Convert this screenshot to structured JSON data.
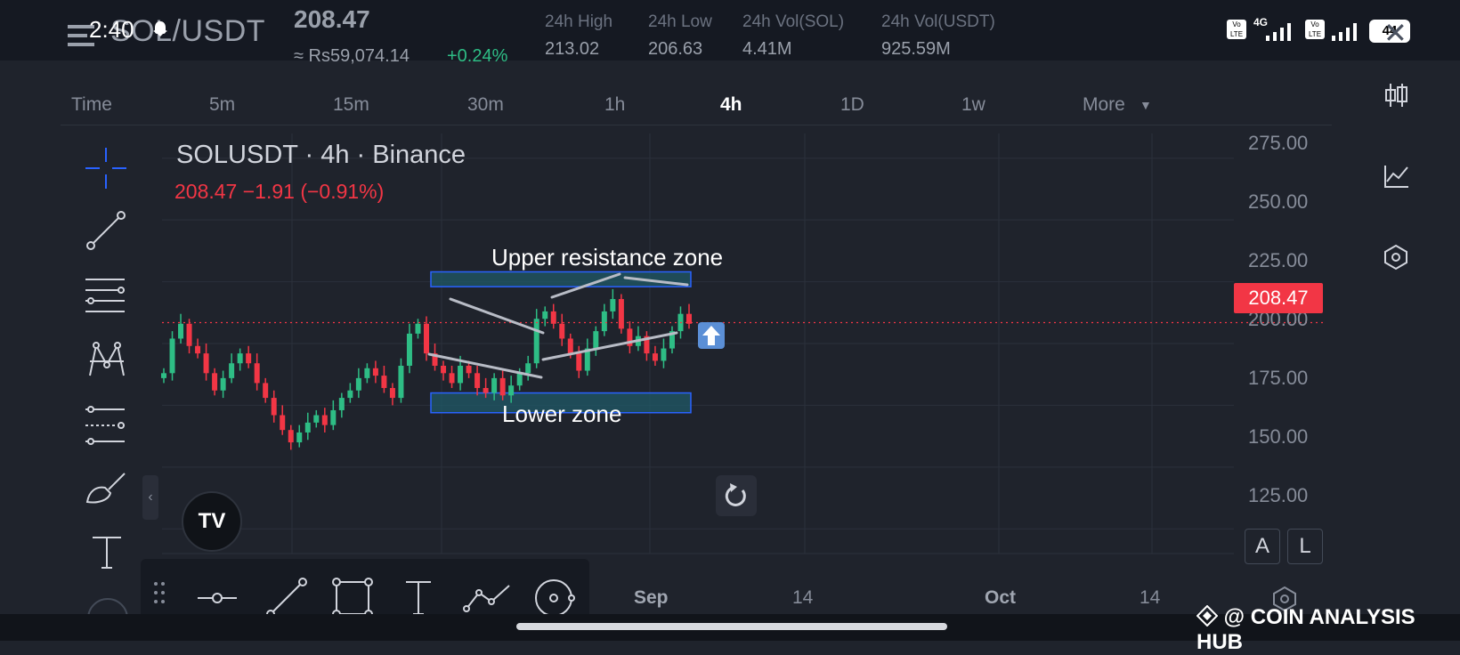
{
  "status_bar": {
    "time": "2:40",
    "network": "4G",
    "volte_1": "Vo LTE",
    "volte_2": "Vo LTE",
    "battery": "44"
  },
  "header": {
    "pair": "SOL/USDT",
    "last_price": "208.47",
    "price_inr": "≈ Rs59,074.14",
    "change_pct": "+0.24%",
    "stats": [
      {
        "label": "24h High",
        "value": "213.02"
      },
      {
        "label": "24h Low",
        "value": "206.63"
      },
      {
        "label": "24h Vol(SOL)",
        "value": "4.41M"
      },
      {
        "label": "24h Vol(USDT)",
        "value": "925.59M"
      }
    ]
  },
  "timeframes": {
    "items": [
      "Time",
      "5m",
      "15m",
      "30m",
      "1h",
      "4h",
      "1D",
      "1w",
      "More"
    ],
    "active": "4h"
  },
  "chart": {
    "title": "SOLUSDT · 4h · Binance",
    "ohlc": "208.47  −1.91 (−0.91%)",
    "last_price_tag": "208.47",
    "y_labels": [
      "275.00",
      "250.00",
      "225.00",
      "200.00",
      "175.00",
      "150.00",
      "125.00"
    ],
    "x_labels": [
      "Sep",
      "14",
      "Oct",
      "14"
    ],
    "upper_zone_label": "Upper resistance zone",
    "lower_zone_label": "Lower zone",
    "logo": "TV",
    "collapse_glyph": "‹",
    "mode_buttons": [
      "A",
      "L"
    ]
  },
  "chart_data": {
    "type": "candlestick",
    "title": "SOLUSDT · 4h · Binance",
    "ylim": [
      115,
      285
    ],
    "y_ticks": [
      275,
      250,
      225,
      200,
      175,
      150,
      125
    ],
    "x_ticks": [
      "Sep",
      "14",
      "Oct",
      "14"
    ],
    "close_series": [
      188,
      202,
      208,
      199,
      196,
      188,
      181,
      186,
      192,
      196,
      192,
      184,
      178,
      171,
      165,
      160,
      164,
      168,
      171,
      167,
      173,
      178,
      181,
      186,
      190,
      187,
      182,
      178,
      191,
      204,
      208,
      196,
      191,
      188,
      184,
      191,
      188,
      182,
      180,
      186,
      179,
      183,
      188,
      192,
      210,
      213,
      208,
      202,
      196,
      189,
      198,
      205,
      213,
      218,
      206,
      199,
      203,
      196,
      193,
      198,
      205,
      212,
      208
    ],
    "last": 208.47,
    "zones": [
      {
        "label": "Upper resistance zone",
        "low": 223,
        "high": 229
      },
      {
        "label": "Lower zone",
        "low": 172,
        "high": 180
      }
    ],
    "trendlines": [
      {
        "from": [
          0,
          210
        ],
        "to": [
          7,
          196
        ]
      },
      {
        "from": [
          0,
          186
        ],
        "to": [
          7,
          175
        ]
      },
      {
        "from": [
          7,
          209
        ],
        "to": [
          12,
          220
        ]
      },
      {
        "from": [
          7,
          188
        ],
        "to": [
          17,
          195
        ]
      },
      {
        "from": [
          13,
          220
        ],
        "to": [
          17,
          214
        ]
      }
    ]
  },
  "colors": {
    "up": "#2ebd85",
    "down": "#f23645",
    "accent": "#2962ff",
    "zone_fill": "#1f5c6b",
    "background": "#1f232c"
  },
  "footer": {
    "watermark": "@ COIN ANALYSIS HUB"
  },
  "icons": {
    "left_toolbar": [
      "crosshair-icon",
      "trend-line-icon",
      "fib-retracement-icon",
      "pattern-icon",
      "prediction-icon",
      "brush-icon",
      "text-icon",
      "more-icon"
    ],
    "right_toolbar": [
      "candles-icon",
      "indicators-icon",
      "settings-icon"
    ],
    "draw_toolbar": [
      "drag-handle-icon",
      "horizontal-ray-icon",
      "trend-line-icon",
      "rectangle-icon",
      "text-icon",
      "path-icon",
      "ellipse-icon"
    ]
  }
}
